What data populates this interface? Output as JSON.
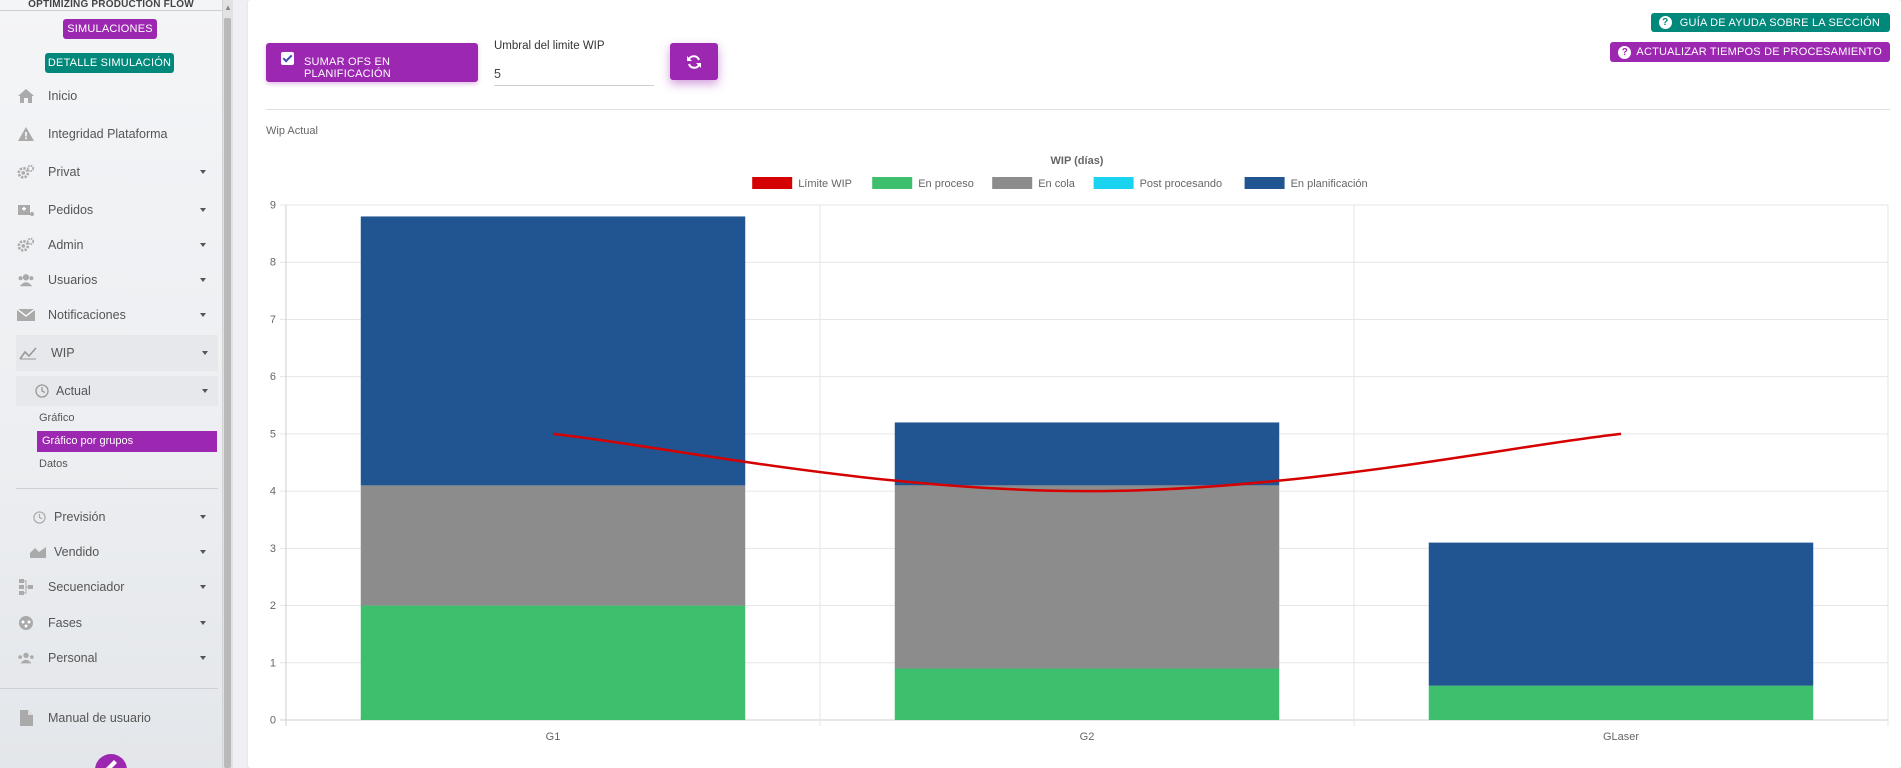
{
  "sidebar": {
    "brand": "OPTIMIZING PRODUCTION FLOW",
    "simulaciones_label": "SIMULACIONES",
    "detalle_label": "DETALLE SIMULACIÓN",
    "items": {
      "inicio": "Inicio",
      "integridad": "Integridad Plataforma",
      "privat": "Privat",
      "pedidos": "Pedidos",
      "admin": "Admin",
      "usuarios": "Usuarios",
      "notificaciones": "Notificaciones",
      "wip": "WIP",
      "actual": "Actual",
      "grafico": "Gráfico",
      "grafico_grupos": "Gráfico por grupos",
      "datos": "Datos",
      "prevision": "Previsión",
      "vendido": "Vendido",
      "secuenciador": "Secuenciador",
      "fases": "Fases",
      "personal": "Personal",
      "manual": "Manual de usuario"
    }
  },
  "toolbar": {
    "sumar_label": "SUMAR OFS EN PLANIFICACIÓN",
    "sumar_checked": true,
    "umbral_label": "Umbral del limite WIP",
    "umbral_value": "5",
    "guia_label": "GUÍA DE AYUDA SOBRE LA SECCIÓN",
    "actualizar_label": "ACTUALIZAR TIEMPOS DE PROCESAMIENTO"
  },
  "section": {
    "title": "Wip Actual"
  },
  "colors": {
    "purple": "#9c27b0",
    "teal": "#00897b",
    "limite": "#d50000",
    "en_proceso": "#3dbf6e",
    "en_cola": "#8c8c8c",
    "post_procesando": "#19d3f0",
    "en_planificacion": "#215591"
  },
  "chart_data": {
    "type": "bar",
    "stacked": true,
    "title": "WIP (días)",
    "categories": [
      "G1",
      "G2",
      "GLaser"
    ],
    "ylim": [
      0,
      9
    ],
    "yticks": [
      "0",
      "1",
      "2",
      "3",
      "4",
      "5",
      "6",
      "7",
      "8",
      "9"
    ],
    "grid": true,
    "legend_position": "top",
    "series": [
      {
        "name": "Límite WIP",
        "type": "line",
        "color": "#d50000",
        "values": [
          5,
          4,
          5
        ]
      },
      {
        "name": "En proceso",
        "color": "#3dbf6e",
        "values": [
          2.0,
          0.9,
          0.6
        ]
      },
      {
        "name": "En cola",
        "color": "#8c8c8c",
        "values": [
          2.1,
          3.2,
          0
        ]
      },
      {
        "name": "Post procesando",
        "color": "#19d3f0",
        "values": [
          0,
          0,
          0
        ]
      },
      {
        "name": "En planificación",
        "color": "#215591",
        "values": [
          4.7,
          1.1,
          2.5
        ]
      }
    ]
  }
}
